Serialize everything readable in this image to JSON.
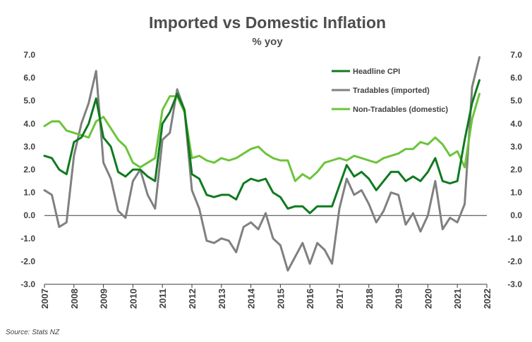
{
  "chart_data": {
    "type": "line",
    "title": "Imported vs Domestic Inflation",
    "subtitle": "% yoy",
    "source": "Source: Stats NZ",
    "ylim": [
      -3.0,
      7.0
    ],
    "yticks": [
      "7.0",
      "6.0",
      "5.0",
      "4.0",
      "3.0",
      "2.0",
      "1.0",
      "0.0",
      "-1.0",
      "-2.0",
      "-3.0"
    ],
    "yticks_right": [
      "7.0",
      "6.0",
      "5.0",
      "4.0",
      "3.0",
      "2.0",
      "1.0",
      "0.0",
      "-1.0",
      "-2.0",
      "-3.0"
    ],
    "xlim": [
      2007.0,
      2022.0
    ],
    "xtick_labels": [
      "2007",
      "2008",
      "2009",
      "2010",
      "2011",
      "2012",
      "2013",
      "2014",
      "2015",
      "2016",
      "2017",
      "2018",
      "2019",
      "2020",
      "2021",
      "2022"
    ],
    "grid": "horizontal",
    "legend_position": "top-right",
    "series": [
      {
        "name": "Headline CPI",
        "color": "#0f7a1f",
        "x": [
          2007.0,
          2007.25,
          2007.5,
          2007.75,
          2008.0,
          2008.25,
          2008.5,
          2008.75,
          2009.0,
          2009.25,
          2009.5,
          2009.75,
          2010.0,
          2010.25,
          2010.5,
          2010.75,
          2011.0,
          2011.25,
          2011.5,
          2011.75,
          2012.0,
          2012.25,
          2012.5,
          2012.75,
          2013.0,
          2013.25,
          2013.5,
          2013.75,
          2014.0,
          2014.25,
          2014.5,
          2014.75,
          2015.0,
          2015.25,
          2015.5,
          2015.75,
          2016.0,
          2016.25,
          2016.5,
          2016.75,
          2017.0,
          2017.25,
          2017.5,
          2017.75,
          2018.0,
          2018.25,
          2018.5,
          2018.75,
          2019.0,
          2019.25,
          2019.5,
          2019.75,
          2020.0,
          2020.25,
          2020.5,
          2020.75,
          2021.0,
          2021.25,
          2021.5,
          2021.75
        ],
        "values": [
          2.6,
          2.5,
          2.0,
          1.8,
          3.2,
          3.4,
          4.0,
          5.1,
          3.4,
          3.0,
          1.9,
          1.7,
          2.0,
          2.0,
          1.7,
          1.5,
          4.0,
          4.5,
          5.3,
          4.6,
          1.8,
          1.6,
          0.9,
          0.8,
          0.9,
          0.9,
          0.7,
          1.4,
          1.6,
          1.5,
          1.6,
          1.0,
          0.8,
          0.3,
          0.4,
          0.4,
          0.1,
          0.4,
          0.4,
          0.4,
          1.3,
          2.2,
          1.7,
          1.9,
          1.6,
          1.1,
          1.5,
          1.9,
          1.9,
          1.5,
          1.7,
          1.5,
          1.9,
          2.5,
          1.5,
          1.4,
          1.5,
          3.3,
          4.9,
          5.9
        ]
      },
      {
        "name": "Tradables (imported)",
        "color": "#808080",
        "x": [
          2007.0,
          2007.25,
          2007.5,
          2007.75,
          2008.0,
          2008.25,
          2008.5,
          2008.75,
          2009.0,
          2009.25,
          2009.5,
          2009.75,
          2010.0,
          2010.25,
          2010.5,
          2010.75,
          2011.0,
          2011.25,
          2011.5,
          2011.75,
          2012.0,
          2012.25,
          2012.5,
          2012.75,
          2013.0,
          2013.25,
          2013.5,
          2013.75,
          2014.0,
          2014.25,
          2014.5,
          2014.75,
          2015.0,
          2015.25,
          2015.5,
          2015.75,
          2016.0,
          2016.25,
          2016.5,
          2016.75,
          2017.0,
          2017.25,
          2017.5,
          2017.75,
          2018.0,
          2018.25,
          2018.5,
          2018.75,
          2019.0,
          2019.25,
          2019.5,
          2019.75,
          2020.0,
          2020.25,
          2020.5,
          2020.75,
          2021.0,
          2021.25,
          2021.5,
          2021.75
        ],
        "values": [
          1.1,
          0.9,
          -0.5,
          -0.3,
          2.6,
          4.0,
          4.9,
          6.3,
          2.3,
          1.6,
          0.2,
          -0.1,
          1.5,
          2.0,
          0.9,
          0.3,
          3.3,
          3.6,
          5.5,
          4.6,
          1.1,
          0.3,
          -1.1,
          -1.2,
          -1.0,
          -1.1,
          -1.6,
          -0.5,
          -0.3,
          -0.6,
          0.1,
          -1.0,
          -1.3,
          -2.4,
          -1.8,
          -1.2,
          -2.1,
          -1.2,
          -1.5,
          -2.1,
          0.3,
          1.6,
          0.9,
          1.1,
          0.5,
          -0.3,
          0.2,
          1.0,
          0.9,
          -0.4,
          0.1,
          -0.7,
          0.0,
          1.5,
          -0.6,
          -0.1,
          -0.3,
          0.5,
          5.6,
          6.9
        ]
      },
      {
        "name": "Non-Tradables (domestic)",
        "color": "#6cc43a",
        "x": [
          2007.0,
          2007.25,
          2007.5,
          2007.75,
          2008.0,
          2008.25,
          2008.5,
          2008.75,
          2009.0,
          2009.25,
          2009.5,
          2009.75,
          2010.0,
          2010.25,
          2010.5,
          2010.75,
          2011.0,
          2011.25,
          2011.5,
          2011.75,
          2012.0,
          2012.25,
          2012.5,
          2012.75,
          2013.0,
          2013.25,
          2013.5,
          2013.75,
          2014.0,
          2014.25,
          2014.5,
          2014.75,
          2015.0,
          2015.25,
          2015.5,
          2015.75,
          2016.0,
          2016.25,
          2016.5,
          2016.75,
          2017.0,
          2017.25,
          2017.5,
          2017.75,
          2018.0,
          2018.25,
          2018.5,
          2018.75,
          2019.0,
          2019.25,
          2019.5,
          2019.75,
          2020.0,
          2020.25,
          2020.5,
          2020.75,
          2021.0,
          2021.25,
          2021.5,
          2021.75
        ],
        "values": [
          3.9,
          4.1,
          4.1,
          3.7,
          3.6,
          3.5,
          3.4,
          4.1,
          4.3,
          3.8,
          3.3,
          3.0,
          2.3,
          2.1,
          2.3,
          2.5,
          4.6,
          5.2,
          5.2,
          4.5,
          2.5,
          2.6,
          2.4,
          2.3,
          2.5,
          2.4,
          2.5,
          2.7,
          2.9,
          3.0,
          2.7,
          2.5,
          2.4,
          2.4,
          1.5,
          1.8,
          1.6,
          1.9,
          2.3,
          2.4,
          2.5,
          2.4,
          2.6,
          2.5,
          2.4,
          2.3,
          2.5,
          2.6,
          2.7,
          2.9,
          2.9,
          3.2,
          3.1,
          3.4,
          3.1,
          2.6,
          2.8,
          2.1,
          4.2,
          5.3
        ]
      }
    ]
  }
}
